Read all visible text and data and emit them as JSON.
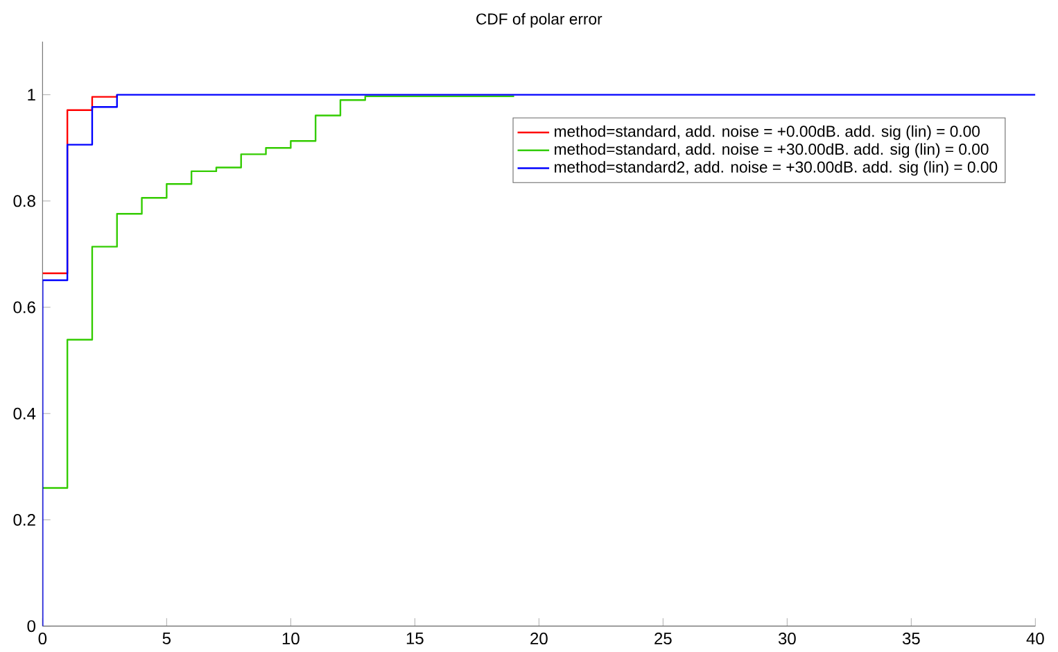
{
  "chart_data": {
    "type": "step",
    "title": "CDF of polar error",
    "xlim": [
      0,
      40
    ],
    "xticks": [
      0,
      5,
      10,
      15,
      20,
      25,
      30,
      35,
      40
    ],
    "ylim": [
      0,
      1.1
    ],
    "yticks": [
      0,
      0.2,
      0.4,
      0.6,
      0.8,
      1
    ],
    "legend": "top right",
    "series": [
      {
        "name": "method=standard, add. noise = +0.00dB. add. sig (lin) = 0.00",
        "color": "#ff0000",
        "x": [
          0,
          1,
          2,
          3
        ],
        "values": [
          0.664,
          0.971,
          0.996,
          1
        ]
      },
      {
        "name": "method=standard, add. noise = +30.00dB. add. sig (lin) = 0.00",
        "color": "#33cc00",
        "x": [
          0,
          1,
          2,
          3,
          4,
          5,
          6,
          7,
          8,
          9,
          10,
          11,
          12,
          13,
          19
        ],
        "values": [
          0.26,
          0.539,
          0.714,
          0.776,
          0.806,
          0.832,
          0.856,
          0.863,
          0.888,
          0.9,
          0.913,
          0.961,
          0.99,
          0.997,
          0.997
        ]
      },
      {
        "name": "method=standard2, add. noise = +30.00dB. add. sig (lin) = 0.00",
        "color": "#0000ff",
        "x": [
          0,
          0,
          1,
          2,
          3,
          40
        ],
        "values": [
          0,
          0.651,
          0.906,
          0.977,
          1,
          1
        ]
      }
    ]
  }
}
